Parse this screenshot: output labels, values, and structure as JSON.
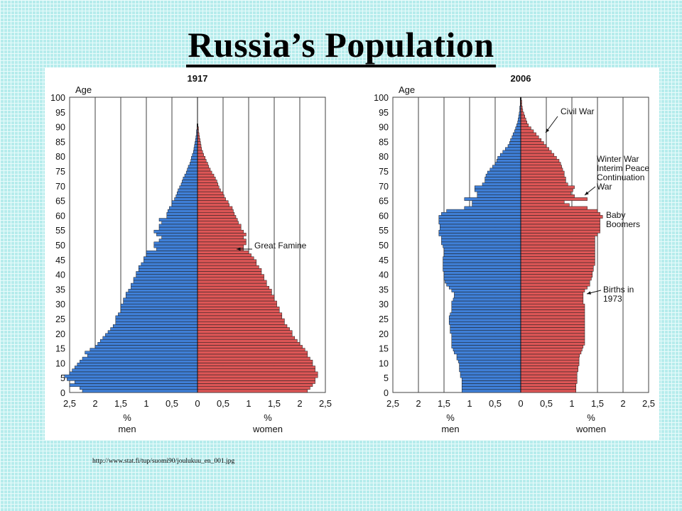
{
  "slide": {
    "title": "Russia’s Population",
    "source": "http://www.stat.fi/tup/suomi90/joulukuu_en_001.jpg"
  },
  "colors": {
    "men": "#3f7fd7",
    "women": "#dd5656",
    "grid": "#404040"
  },
  "chart_data": [
    {
      "type": "bar",
      "title": "1917",
      "ylabel": "Age",
      "xlabel_left": "%\nmen",
      "xlabel_right": "%\nwomen",
      "xlim": [
        -2.5,
        2.5
      ],
      "ylim": [
        0,
        100
      ],
      "xticks": [
        "2,5",
        "2",
        "1,5",
        "1",
        "0,5",
        "0",
        "0,5",
        "1",
        "1,5",
        "2",
        "2,5"
      ],
      "yticks": [
        0,
        5,
        10,
        15,
        20,
        25,
        30,
        35,
        40,
        45,
        50,
        55,
        60,
        65,
        70,
        75,
        80,
        85,
        90,
        95,
        100
      ],
      "grid": true,
      "ages": [
        0,
        1,
        2,
        3,
        4,
        5,
        6,
        7,
        8,
        9,
        10,
        11,
        12,
        13,
        14,
        15,
        16,
        17,
        18,
        19,
        20,
        21,
        22,
        23,
        24,
        25,
        26,
        27,
        28,
        29,
        30,
        31,
        32,
        33,
        34,
        35,
        36,
        37,
        38,
        39,
        40,
        41,
        42,
        43,
        44,
        45,
        46,
        47,
        48,
        49,
        50,
        51,
        52,
        53,
        54,
        55,
        56,
        57,
        58,
        59,
        60,
        61,
        62,
        63,
        64,
        65,
        66,
        67,
        68,
        69,
        70,
        71,
        72,
        73,
        74,
        75,
        76,
        77,
        78,
        79,
        80,
        81,
        82,
        83,
        84,
        85,
        86,
        87,
        88,
        89,
        90
      ],
      "series": [
        {
          "name": "men",
          "values": [
            2.25,
            2.3,
            2.5,
            2.4,
            2.55,
            2.6,
            2.5,
            2.45,
            2.4,
            2.35,
            2.3,
            2.25,
            2.15,
            2.2,
            2.1,
            2.0,
            1.95,
            1.9,
            1.85,
            1.8,
            1.75,
            1.7,
            1.65,
            1.6,
            1.6,
            1.6,
            1.55,
            1.5,
            1.5,
            1.5,
            1.45,
            1.45,
            1.4,
            1.4,
            1.35,
            1.3,
            1.3,
            1.25,
            1.25,
            1.2,
            1.2,
            1.15,
            1.15,
            1.1,
            1.05,
            1.05,
            1.0,
            1.0,
            0.8,
            0.85,
            0.85,
            0.75,
            0.7,
            0.8,
            0.85,
            0.75,
            0.75,
            0.7,
            0.75,
            0.6,
            0.6,
            0.58,
            0.55,
            0.5,
            0.5,
            0.45,
            0.42,
            0.4,
            0.38,
            0.35,
            0.32,
            0.3,
            0.28,
            0.25,
            0.22,
            0.2,
            0.18,
            0.15,
            0.13,
            0.12,
            0.1,
            0.08,
            0.07,
            0.06,
            0.05,
            0.04,
            0.03,
            0.02,
            0.02,
            0.01,
            0.01
          ]
        },
        {
          "name": "women",
          "values": [
            2.15,
            2.2,
            2.25,
            2.3,
            2.3,
            2.35,
            2.35,
            2.3,
            2.3,
            2.25,
            2.25,
            2.2,
            2.15,
            2.15,
            2.1,
            2.05,
            2.0,
            1.95,
            1.9,
            1.85,
            1.85,
            1.8,
            1.75,
            1.7,
            1.7,
            1.65,
            1.65,
            1.6,
            1.6,
            1.55,
            1.55,
            1.5,
            1.5,
            1.45,
            1.45,
            1.4,
            1.35,
            1.35,
            1.3,
            1.3,
            1.25,
            1.25,
            1.2,
            1.15,
            1.15,
            1.1,
            1.05,
            1.0,
            0.9,
            0.9,
            0.95,
            0.95,
            0.9,
            0.95,
            0.9,
            0.85,
            0.85,
            0.8,
            0.78,
            0.75,
            0.72,
            0.7,
            0.68,
            0.62,
            0.6,
            0.55,
            0.52,
            0.5,
            0.45,
            0.42,
            0.4,
            0.38,
            0.35,
            0.32,
            0.28,
            0.25,
            0.22,
            0.2,
            0.17,
            0.15,
            0.12,
            0.1,
            0.08,
            0.07,
            0.06,
            0.05,
            0.04,
            0.03,
            0.02,
            0.02,
            0.01
          ]
        }
      ],
      "annotations": [
        {
          "text": "Great Famine",
          "age": 50.5
        }
      ]
    },
    {
      "type": "bar",
      "title": "2006",
      "ylabel": "Age",
      "xlabel_left": "%\nmen",
      "xlabel_right": "%\nwomen",
      "xlim": [
        -2.5,
        2.5
      ],
      "ylim": [
        0,
        100
      ],
      "xticks": [
        "2,5",
        "2",
        "1,5",
        "1",
        "0,5",
        "0",
        "0,5",
        "1",
        "1,5",
        "2",
        "2,5"
      ],
      "yticks": [
        0,
        5,
        10,
        15,
        20,
        25,
        30,
        35,
        40,
        45,
        50,
        55,
        60,
        65,
        70,
        75,
        80,
        85,
        90,
        95,
        100
      ],
      "grid": true,
      "ages": [
        0,
        1,
        2,
        3,
        4,
        5,
        6,
        7,
        8,
        9,
        10,
        11,
        12,
        13,
        14,
        15,
        16,
        17,
        18,
        19,
        20,
        21,
        22,
        23,
        24,
        25,
        26,
        27,
        28,
        29,
        30,
        31,
        32,
        33,
        34,
        35,
        36,
        37,
        38,
        39,
        40,
        41,
        42,
        43,
        44,
        45,
        46,
        47,
        48,
        49,
        50,
        51,
        52,
        53,
        54,
        55,
        56,
        57,
        58,
        59,
        60,
        61,
        62,
        63,
        64,
        65,
        66,
        67,
        68,
        69,
        70,
        71,
        72,
        73,
        74,
        75,
        76,
        77,
        78,
        79,
        80,
        81,
        82,
        83,
        84,
        85,
        86,
        87,
        88,
        89,
        90,
        91,
        92,
        93,
        94,
        95,
        96,
        97,
        98,
        99
      ],
      "series": [
        {
          "name": "men",
          "values": [
            1.15,
            1.15,
            1.15,
            1.15,
            1.15,
            1.18,
            1.18,
            1.2,
            1.2,
            1.2,
            1.22,
            1.25,
            1.25,
            1.3,
            1.32,
            1.35,
            1.35,
            1.35,
            1.35,
            1.35,
            1.38,
            1.38,
            1.38,
            1.4,
            1.4,
            1.4,
            1.38,
            1.35,
            1.35,
            1.35,
            1.35,
            1.32,
            1.3,
            1.3,
            1.35,
            1.4,
            1.45,
            1.48,
            1.5,
            1.5,
            1.5,
            1.52,
            1.52,
            1.52,
            1.52,
            1.52,
            1.5,
            1.5,
            1.5,
            1.52,
            1.55,
            1.55,
            1.55,
            1.6,
            1.6,
            1.58,
            1.58,
            1.6,
            1.6,
            1.6,
            1.55,
            1.45,
            1.1,
            0.95,
            0.95,
            1.1,
            0.85,
            0.85,
            0.9,
            0.9,
            0.75,
            0.7,
            0.7,
            0.68,
            0.65,
            0.6,
            0.55,
            0.5,
            0.47,
            0.45,
            0.4,
            0.35,
            0.3,
            0.25,
            0.22,
            0.2,
            0.17,
            0.15,
            0.12,
            0.1,
            0.08,
            0.06,
            0.05,
            0.04,
            0.03,
            0.02,
            0.02,
            0.01,
            0.01,
            0.01
          ]
        },
        {
          "name": "women",
          "values": [
            1.08,
            1.08,
            1.08,
            1.1,
            1.1,
            1.1,
            1.1,
            1.12,
            1.12,
            1.14,
            1.14,
            1.14,
            1.15,
            1.18,
            1.2,
            1.22,
            1.25,
            1.25,
            1.25,
            1.25,
            1.25,
            1.25,
            1.25,
            1.25,
            1.25,
            1.25,
            1.25,
            1.25,
            1.25,
            1.25,
            1.22,
            1.22,
            1.22,
            1.22,
            1.25,
            1.3,
            1.35,
            1.35,
            1.38,
            1.4,
            1.4,
            1.42,
            1.42,
            1.45,
            1.45,
            1.45,
            1.45,
            1.45,
            1.45,
            1.45,
            1.45,
            1.45,
            1.45,
            1.5,
            1.55,
            1.55,
            1.55,
            1.55,
            1.55,
            1.6,
            1.55,
            1.5,
            1.3,
            0.95,
            0.85,
            1.3,
            1.05,
            0.98,
            1.02,
            1.05,
            0.92,
            0.88,
            0.88,
            0.85,
            0.85,
            0.82,
            0.8,
            0.78,
            0.75,
            0.7,
            0.65,
            0.6,
            0.55,
            0.5,
            0.45,
            0.4,
            0.35,
            0.3,
            0.25,
            0.2,
            0.15,
            0.12,
            0.1,
            0.08,
            0.06,
            0.04,
            0.03,
            0.02,
            0.02,
            0.01
          ]
        }
      ],
      "annotations": [
        {
          "text": "Civil War",
          "age": 91
        },
        {
          "text": "Winter War\nInterim Peace\nContinuation\nWar",
          "age": 74
        },
        {
          "text": "Baby\nBoomers",
          "age": 59
        },
        {
          "text": "Births in\n1973",
          "age": 34
        }
      ]
    }
  ]
}
